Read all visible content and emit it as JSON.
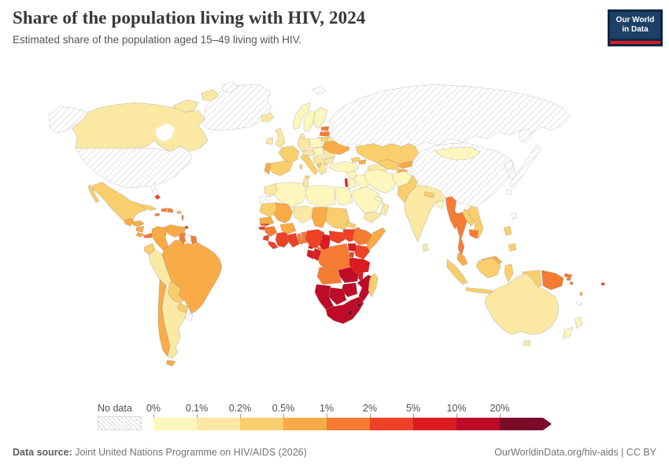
{
  "header": {
    "title": "Share of the population living with HIV, 2024",
    "subtitle": "Estimated share of the population aged 15–49 living with HIV.",
    "logo": {
      "line1": "Our World",
      "line2": "in Data"
    }
  },
  "legend": {
    "no_data_label": "No data"
  },
  "footer": {
    "source_label": "Data source:",
    "source_value": "Joint United Nations Programme on HIV/AIDS (2026)",
    "right": "OurWorldinData.org/hiv-aids | CC BY"
  },
  "chart_data": {
    "type": "heatmap",
    "subtype": "world-choropleth",
    "title": "Share of the population living with HIV, 2024",
    "unit": "% of population aged 15–49",
    "legend_position": "bottom",
    "bin_edge_labels": [
      "0%",
      "0.1%",
      "0.2%",
      "0.5%",
      "1%",
      "2%",
      "5%",
      "10%",
      "20%"
    ],
    "bin_ranges": [
      "0–0.1%",
      "0.1–0.2%",
      "0.2–0.5%",
      "0.5–1%",
      "1–2%",
      "2–5%",
      "5–10%",
      "10–20%",
      ">20%"
    ],
    "bin_colors": [
      "#FDF6BD",
      "#FAE8A3",
      "#F9CE6D",
      "#F8AB46",
      "#F57C32",
      "#EE4125",
      "#DA1B20",
      "#BE0B28",
      "#7D0A27"
    ],
    "no_data_style": "hatched",
    "country_bins": {
      "greenland": "no_data",
      "arctic_island": "no_data",
      "canada": 1,
      "canada_islands": 1,
      "alaska": "no_data",
      "united_states": "no_data",
      "mexico": 2,
      "guatemala": 3,
      "honduras": 3,
      "nicaragua": 3,
      "costa_rica": 3,
      "panama": 4,
      "cuba": 2,
      "haiti": 4,
      "dominican_republic": 4,
      "jamaica": 4,
      "puerto_rico": 3,
      "bahamas": 5,
      "trinidad_and_tobago": 5,
      "lesser_antilles": 4,
      "colombia": 3,
      "venezuela": 3,
      "guyana": 4,
      "suriname": "no_data",
      "french_guiana": 4,
      "ecuador": 2,
      "peru": 1,
      "brazil": 3,
      "bolivia": 2,
      "paraguay": 2,
      "chile": 3,
      "argentina": 1,
      "uruguay": "no_data",
      "iceland": 1,
      "ireland": 1,
      "united_kingdom": 1,
      "norway": 0,
      "sweden": 0,
      "finland": 0,
      "denmark": 1,
      "estonia": 4,
      "latvia": 4,
      "lithuania": 2,
      "belarus": 1,
      "poland": 0,
      "germany": 1,
      "france": 2,
      "spain": 2,
      "portugal": 3,
      "italy": 2,
      "alpine_states": 1,
      "central_europe": 0,
      "balkans": 1,
      "romania": 1,
      "bulgaria": 1,
      "greece": 1,
      "albania": 2,
      "ukraine": 3,
      "russia": "no_data",
      "svalbard": "no_data",
      "kazakhstan": 2,
      "turkmenistan": 1,
      "uzbekistan": 2,
      "kyrgyzstan": 3,
      "tajikistan": 3,
      "georgia": 2,
      "azerbaijan": 3,
      "turkey": 0,
      "syria": 0,
      "israel_lebanon": 6,
      "jordan": 0,
      "iraq": 0,
      "saudi_arabia": 0,
      "yemen": 1,
      "oman": 1,
      "uae": 0,
      "iran": 0,
      "afghanistan": 0,
      "pakistan": 2,
      "india": 1,
      "nepal": 2,
      "bangladesh": 0,
      "sri_lanka": 1,
      "myanmar": 4,
      "thailand": 4,
      "laos": 2,
      "vietnam": 2,
      "cambodia": 4,
      "malaysia": 3,
      "indonesia": 2,
      "philippines": 2,
      "taiwan": "no_data",
      "mongolia": 0,
      "china": "no_data",
      "north_korea": "no_data",
      "south_korea": "no_data",
      "japan": "no_data",
      "papua_new_guinea": 4,
      "timor": 2,
      "australia": 1,
      "new_zealand": 0,
      "fiji": 5,
      "solomon_islands": 4,
      "vanuatu": 3,
      "new_caledonia": "no_data",
      "morocco": 1,
      "western_sahara": "no_data",
      "algeria": 0,
      "tunisia": 1,
      "libya": 0,
      "egypt": 0,
      "mauritania": 2,
      "mali": 3,
      "niger": 1,
      "chad": 3,
      "sudan": 2,
      "eritrea": 2,
      "djibouti": 4,
      "senegal": 3,
      "gambia": 5,
      "guinea_bissau": 5,
      "guinea": 4,
      "sierra_leone": 5,
      "liberia": 5,
      "cote_divoire": 5,
      "ghana": 5,
      "togo": 4,
      "benin": 4,
      "burkina_faso": 3,
      "nigeria": 5,
      "cameroon": 6,
      "central_african_republic": 5,
      "south_sudan": 5,
      "ethiopia": 4,
      "somalia": 3,
      "kenya": 5,
      "uganda": 6,
      "rwanda_burundi": 5,
      "dr_congo": 4,
      "congo": 6,
      "gabon": 6,
      "equatorial_guinea": 6,
      "angola": 4,
      "zambia": 7,
      "malawi": 6,
      "tanzania": 6,
      "mozambique": 7,
      "zimbabwe": 7,
      "botswana": 7,
      "namibia": 7,
      "south_africa": 7,
      "lesotho": 8,
      "eswatini": 8,
      "madagascar": 2
    }
  }
}
